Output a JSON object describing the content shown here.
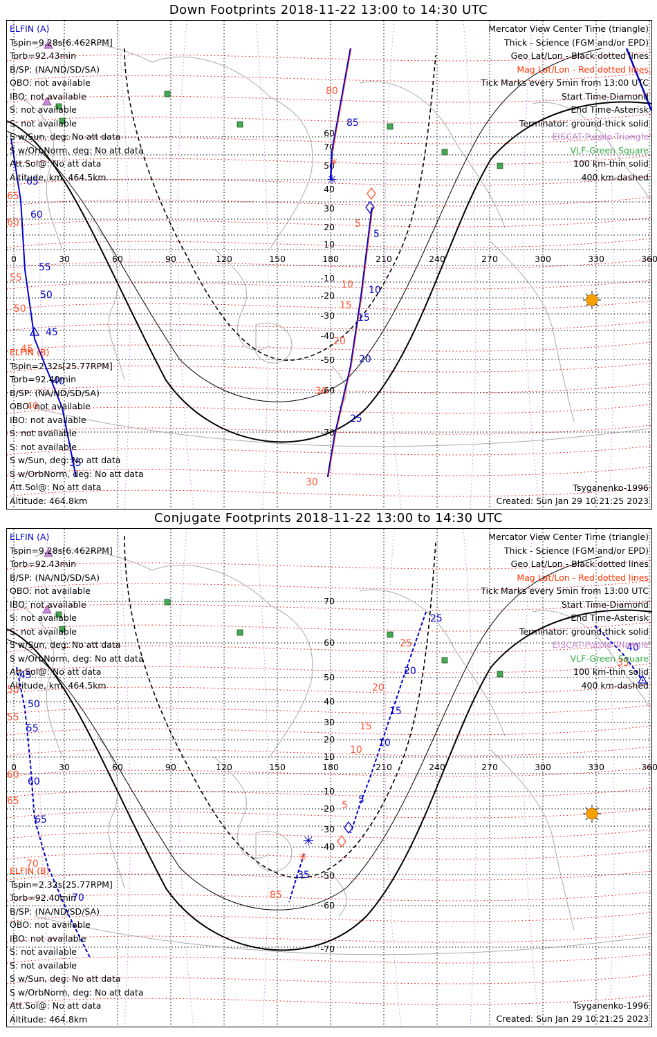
{
  "panels": [
    {
      "id": "down",
      "title": "Down Footprints 2018-11-22 13:00 to 14:30 UTC",
      "elfin_a": {
        "header": "ELFIN (A)",
        "lines": [
          "Tspin=9.28s[6.462RPM]",
          "Torb=92.43min",
          "B/SP: (NA/ND/SD/SA)",
          "OBO: not available",
          "IBO: not available",
          "S: not available",
          "S: not available",
          "S w/Sun, deg: No att data",
          "S w/OrbNorm, deg: No att data",
          "Att.Sol@: No att data",
          "Altitude, km: 464.5km"
        ]
      },
      "elfin_b": {
        "header": "ELFIN (B)",
        "lines": [
          "Tspin=2.32s[25.77RPM]",
          "Torb=92.40min",
          "B/SP: (NA/ND/SD/SA)",
          "OBO: not available",
          "IBO: not available",
          "S: not available",
          "S: not available",
          "S w/Sun, deg: No att data",
          "S w/OrbNorm, deg: No att data",
          "Att.Sol@: No att data",
          "Altitude: 464.8km"
        ]
      },
      "legend": [
        {
          "text": "Mercator View Center Time (triangle)",
          "color": "#000000"
        },
        {
          "text": "Thick - Science (FGM and/or EPD)",
          "color": "#000000"
        },
        {
          "text": "Geo Lat/Lon - Black dotted lines",
          "color": "#000000"
        },
        {
          "text": "Mag Lat/Lon - Red dotted lines",
          "color": "#ff3300"
        },
        {
          "text": "Tick Marks every 5min from 13:00 UTC",
          "color": "#000000"
        },
        {
          "text": "Start Time-Diamond",
          "color": "#000000"
        },
        {
          "text": "End Time-Asterisk",
          "color": "#000000"
        },
        {
          "text": "Terminator: ground-thick solid",
          "color": "#000000"
        },
        {
          "text": "EISCAT-Purple Triangle",
          "color": "#cc88dd"
        },
        {
          "text": "VLF-Green Square",
          "color": "#33aa44"
        },
        {
          "text": "100 km-thin solid",
          "color": "#000000"
        },
        {
          "text": "400 km-dashed",
          "color": "#000000"
        }
      ],
      "footer_left": "Tsyganenko-1996",
      "footer_right": "Created: Sun Jan 29 10:21:25 2023",
      "lon_labels": [
        "0",
        "30",
        "60",
        "90",
        "120",
        "150",
        "180",
        "210",
        "240",
        "270",
        "300",
        "330",
        "360"
      ],
      "lat_labels": [
        "70",
        "60",
        "50",
        "40",
        "30",
        "20",
        "10",
        "-10",
        "-20",
        "-30",
        "-40",
        "-50",
        "-60",
        "-70"
      ],
      "track_a_labels": [
        "85",
        "5",
        "10",
        "15",
        "20",
        "25",
        "65",
        "60",
        "55",
        "50",
        "45",
        "40",
        "35"
      ],
      "track_b_labels": [
        "80",
        "5",
        "10",
        "15",
        "20",
        "30",
        "65",
        "60",
        "55",
        "50",
        "45",
        "40",
        "30"
      ]
    },
    {
      "id": "conj",
      "title": "Conjugate Footprints 2018-11-22 13:00 to 14:30 UTC",
      "elfin_a": {
        "header": "ELFIN (A)",
        "lines": [
          "Tspin=9.28s[6.462RPM]",
          "Torb=92.43min",
          "B/SP: (NA/ND/SD/SA)",
          "OBO: not available",
          "IBO: not available",
          "S: not available",
          "S: not available",
          "S w/Sun, deg: No att data",
          "S w/OrbNorm, deg: No att data",
          "Att.Sol@: No att data",
          "Altitude, km: 464.5km"
        ]
      },
      "elfin_b": {
        "header": "ELFIN (B)",
        "lines": [
          "Tspin=2.32s[25.77RPM]",
          "Torb=92.40min",
          "B/SP: (NA/ND/SD/SA)",
          "OBO: not available",
          "IBO: not available",
          "S: not available",
          "S: not available",
          "S w/Sun, deg: No att data",
          "S w/OrbNorm, deg: No att data",
          "Att.Sol@: No att data",
          "Altitude: 464.8km"
        ]
      },
      "legend": [
        {
          "text": "Mercator View Center Time (triangle)",
          "color": "#000000"
        },
        {
          "text": "Thick - Science (FGM and/or EPD)",
          "color": "#000000"
        },
        {
          "text": "Geo Lat/Lon - Black dotted lines",
          "color": "#000000"
        },
        {
          "text": "Mag Lat/Lon - Red dotted lines",
          "color": "#ff3300"
        },
        {
          "text": "Tick Marks every 5min from 13:00 UTC",
          "color": "#000000"
        },
        {
          "text": "Start Time-Diamond",
          "color": "#000000"
        },
        {
          "text": "End Time-Asterisk",
          "color": "#000000"
        },
        {
          "text": "Terminator: ground-thick solid",
          "color": "#000000"
        },
        {
          "text": "EISCAT-Purple Triangle",
          "color": "#cc88dd"
        },
        {
          "text": "VLF-Green Square",
          "color": "#33aa44"
        },
        {
          "text": "100 km-thin solid",
          "color": "#000000"
        },
        {
          "text": "400 km-dashed",
          "color": "#000000"
        }
      ],
      "footer_left": "Tsyganenko-1996",
      "footer_right": "Created: Sun Jan 29 10:21:25 2023",
      "lon_labels": [
        "0",
        "30",
        "60",
        "90",
        "120",
        "150",
        "180",
        "210",
        "240",
        "270",
        "300",
        "330",
        "360"
      ],
      "lat_labels": [
        "70",
        "60",
        "50",
        "40",
        "30",
        "20",
        "10",
        "-10",
        "-20",
        "-30",
        "-40",
        "-50",
        "-60",
        "-70"
      ],
      "track_a_labels": [
        "5",
        "10",
        "15",
        "20",
        "25",
        "35",
        "45",
        "50",
        "55",
        "60",
        "65",
        "70",
        "40"
      ],
      "track_b_labels": [
        "5",
        "10",
        "15",
        "20",
        "25",
        "85",
        "50",
        "55",
        "60",
        "65",
        "70",
        "35"
      ]
    }
  ],
  "colors": {
    "elfin_a": "#0000cc",
    "elfin_b": "#ff5533",
    "geo_grid": "#000000",
    "mag_grid": "#ff0000",
    "eiscat": "#cc88dd",
    "vlf": "#44aa55",
    "coast": "#aaaaaa",
    "sun": "#f5a000"
  },
  "icons": [
    "sun-icon",
    "start-diamond-icon",
    "end-asterisk-icon",
    "eiscat-triangle-icon",
    "vlf-square-icon",
    "view-center-triangle-icon"
  ]
}
